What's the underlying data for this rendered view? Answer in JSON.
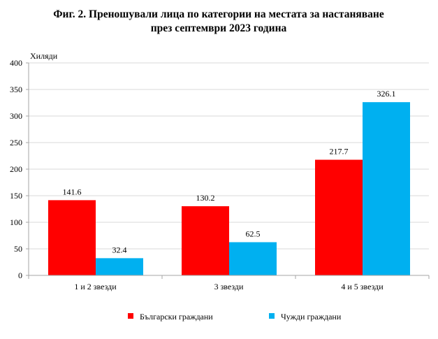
{
  "chart_data": {
    "type": "bar",
    "title": [
      "Фиг. 2. Преношували лица по категории на местата за настаняване",
      "през септември 2023 година"
    ],
    "ylabel": "Хиляди",
    "xlabel": "",
    "ylim": [
      0,
      400
    ],
    "yticks": [
      0,
      50,
      100,
      150,
      200,
      250,
      300,
      350,
      400
    ],
    "grid": true,
    "legend_position": "bottom",
    "categories": [
      "1 и 2 звезди",
      "3 звезди",
      "4 и 5 звезди"
    ],
    "series": [
      {
        "name": "Български граждани",
        "color": "#FF0000",
        "values": [
          141.6,
          130.2,
          217.7
        ]
      },
      {
        "name": "Чужди граждани",
        "color": "#00B0F0",
        "values": [
          32.4,
          62.5,
          326.1
        ]
      }
    ]
  }
}
